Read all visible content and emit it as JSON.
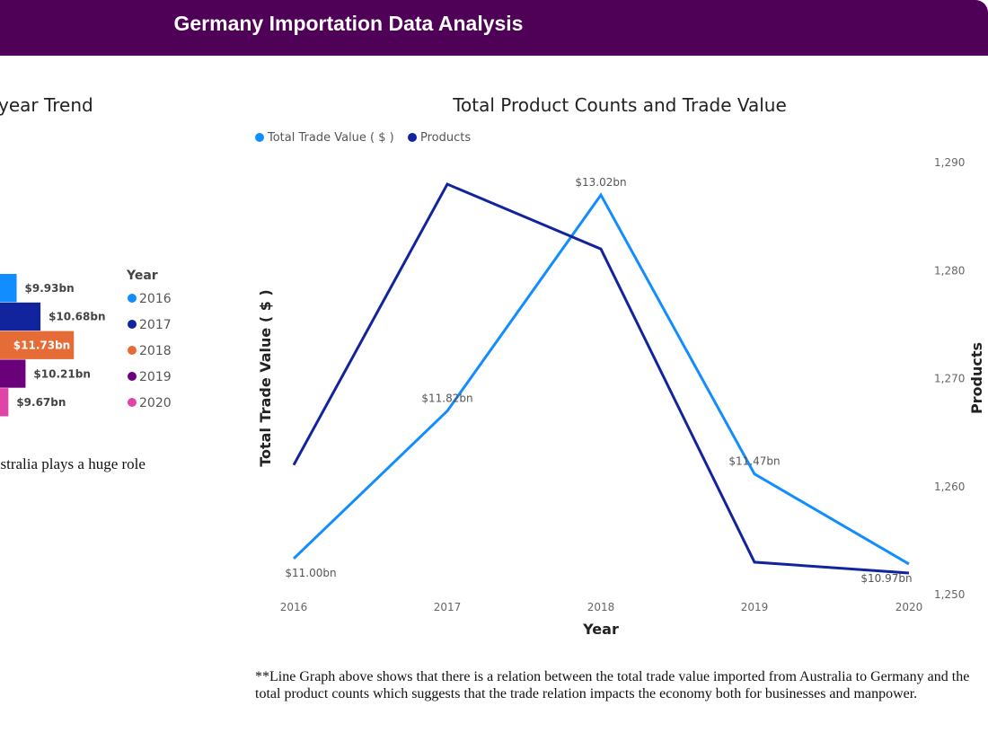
{
  "header": {
    "title": "Germany Importation Data Analysis"
  },
  "left_panel": {
    "title": "year Trend",
    "note": "ustralia plays a huge role"
  },
  "note": "**Line Graph above shows that there is a relation between the total trade value imported from Australia to Germany and the total product counts which suggests that the trade relation impacts the economy both for businesses and manpower.",
  "chart_data": [
    {
      "type": "bar",
      "orientation": "horizontal",
      "title": "year Trend",
      "legend": {
        "title": "Year",
        "placement": "right",
        "entries": [
          "2016",
          "2017",
          "2018",
          "2019",
          "2020"
        ]
      },
      "categories": [
        "2016",
        "2017",
        "2018",
        "2019",
        "2020"
      ],
      "values": [
        9.93,
        10.68,
        11.73,
        10.21,
        9.67
      ],
      "data_labels": [
        "$9.93bn",
        "$10.68bn",
        "$11.73bn",
        "$10.21bn",
        "$9.67bn"
      ],
      "colors": [
        "#118dff",
        "#12239e",
        "#e66c37",
        "#6b007b",
        "#e044a7"
      ]
    },
    {
      "type": "line",
      "title": "Total Product Counts and Trade Value",
      "xlabel": "Year",
      "ylabel": "Total Trade Value ( $ )",
      "y2label": "Products",
      "x": [
        "2016",
        "2017",
        "2018",
        "2019",
        "2020"
      ],
      "ylim": [
        10.8,
        13.2
      ],
      "y2lim": [
        1250,
        1290
      ],
      "y2ticks": [
        "1,250",
        "1,260",
        "1,270",
        "1,280",
        "1,290"
      ],
      "grid": false,
      "legend": {
        "placement": "top-left"
      },
      "series": [
        {
          "name": "Total Trade Value ( $ )",
          "axis": "left",
          "color": "#118dff",
          "values": [
            11.0,
            11.82,
            13.02,
            11.47,
            10.97
          ],
          "data_labels": [
            "$11.00bn",
            "$11.82bn",
            "$13.02bn",
            "$11.47bn",
            "$10.97bn"
          ]
        },
        {
          "name": "Products",
          "axis": "right",
          "color": "#12239e",
          "values": [
            1262,
            1288,
            1282,
            1253,
            1252
          ]
        }
      ]
    }
  ]
}
